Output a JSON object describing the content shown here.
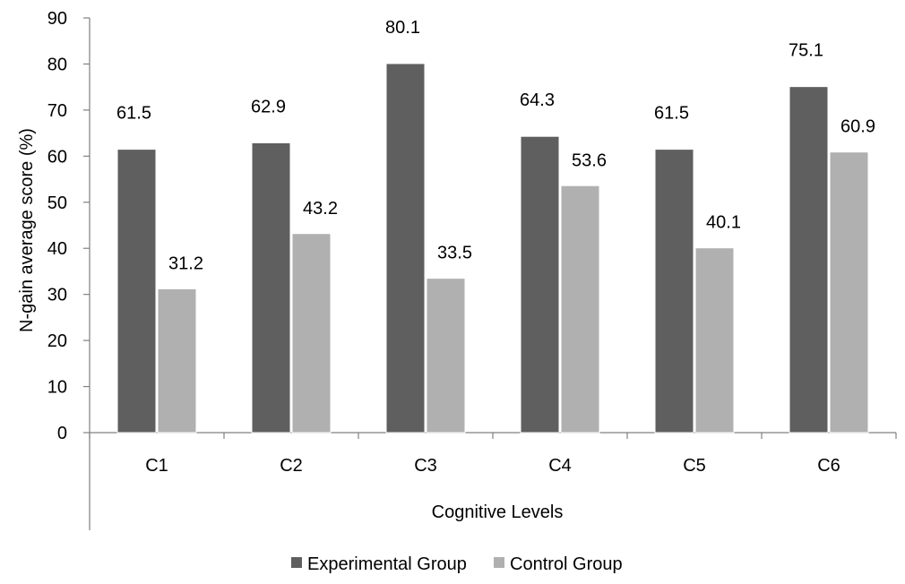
{
  "chart_data": {
    "type": "bar",
    "title": "",
    "xlabel": "Cognitive Levels",
    "ylabel": "N-gain average score  (%)",
    "categories": [
      "C1",
      "C2",
      "C3",
      "C4",
      "C5",
      "C6"
    ],
    "series": [
      {
        "name": "Experimental Group",
        "values": [
          61.5,
          62.9,
          80.1,
          64.3,
          61.5,
          75.1
        ],
        "color": "#5f5f5f"
      },
      {
        "name": "Control Group",
        "values": [
          31.2,
          43.2,
          33.5,
          53.6,
          40.1,
          60.9
        ],
        "color": "#b0b0b0"
      }
    ],
    "ylim": [
      0,
      90
    ],
    "yticks": [
      0,
      10,
      20,
      30,
      40,
      50,
      60,
      70,
      80,
      90
    ],
    "grid": false,
    "data_labels": true,
    "legend": "bottom"
  }
}
